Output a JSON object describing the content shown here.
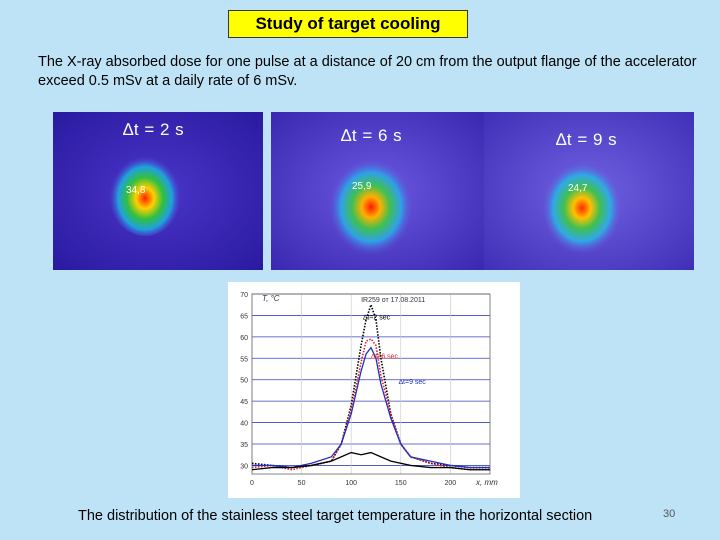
{
  "slide": {
    "title": "Study of target cooling",
    "paragraph": "The X-ray absorbed dose for one pulse  at a distance of 20 cm from the output flange of the accelerator exceed 0.5 mSv at a daily rate of 6 mSv.",
    "caption": "The distribution of the stainless steel target temperature in the horizontal section",
    "page_number": "30"
  },
  "thermograms": [
    {
      "label": "∆t = 2 s",
      "reading": "34,8"
    },
    {
      "label": "∆t = 6 s",
      "reading": "25,9"
    },
    {
      "label": "∆t = 9 s",
      "reading": "24,7"
    }
  ],
  "chart_data": {
    "type": "line",
    "title": "IR259 от 17.08.2011",
    "ylabel": "T, °C",
    "xlabel": "x, mm",
    "xlim": [
      0,
      240
    ],
    "ylim": [
      28,
      70
    ],
    "xticks": [
      0,
      50,
      100,
      150,
      200
    ],
    "yticks": [
      30,
      35,
      40,
      45,
      50,
      55,
      60,
      65,
      70
    ],
    "grid": true,
    "series": [
      {
        "name": "∆t=2 sec",
        "color": "#000000",
        "style": "dotted",
        "x": [
          0,
          20,
          40,
          60,
          80,
          90,
          100,
          110,
          115,
          120,
          125,
          130,
          140,
          150,
          160,
          180,
          200,
          220,
          240
        ],
        "y": [
          30.5,
          30,
          29.5,
          30,
          31,
          35,
          44,
          58,
          64,
          67.5,
          64,
          55,
          42,
          35,
          32,
          30.5,
          30,
          29.5,
          29.5
        ]
      },
      {
        "name": "∆t=6 sec",
        "color": "#e02020",
        "style": "dotted",
        "x": [
          0,
          20,
          40,
          60,
          80,
          90,
          100,
          110,
          115,
          120,
          125,
          130,
          140,
          150,
          160,
          180,
          200,
          220,
          240
        ],
        "y": [
          29.5,
          30,
          29,
          30,
          31,
          35,
          43,
          54,
          59,
          59.5,
          58,
          51,
          42,
          35,
          32,
          30.5,
          29.5,
          29,
          29
        ]
      },
      {
        "name": "∆t=9 sec",
        "color": "#2030c0",
        "style": "solid",
        "x": [
          0,
          20,
          40,
          60,
          80,
          90,
          100,
          110,
          115,
          120,
          125,
          130,
          140,
          150,
          160,
          180,
          200,
          220,
          240
        ],
        "y": [
          30,
          30,
          29.5,
          30.5,
          32,
          35,
          42,
          52,
          56,
          57.5,
          55,
          49,
          41,
          35,
          32,
          31,
          30,
          29.5,
          29.5
        ]
      },
      {
        "name": "",
        "color": "#000000",
        "style": "solid",
        "x": [
          0,
          20,
          40,
          60,
          80,
          100,
          110,
          120,
          130,
          140,
          160,
          180,
          200,
          220,
          240
        ],
        "y": [
          29,
          29.5,
          29.5,
          30,
          31,
          33,
          32.5,
          33,
          32,
          31,
          30,
          29.5,
          29.5,
          29,
          29
        ]
      }
    ]
  }
}
